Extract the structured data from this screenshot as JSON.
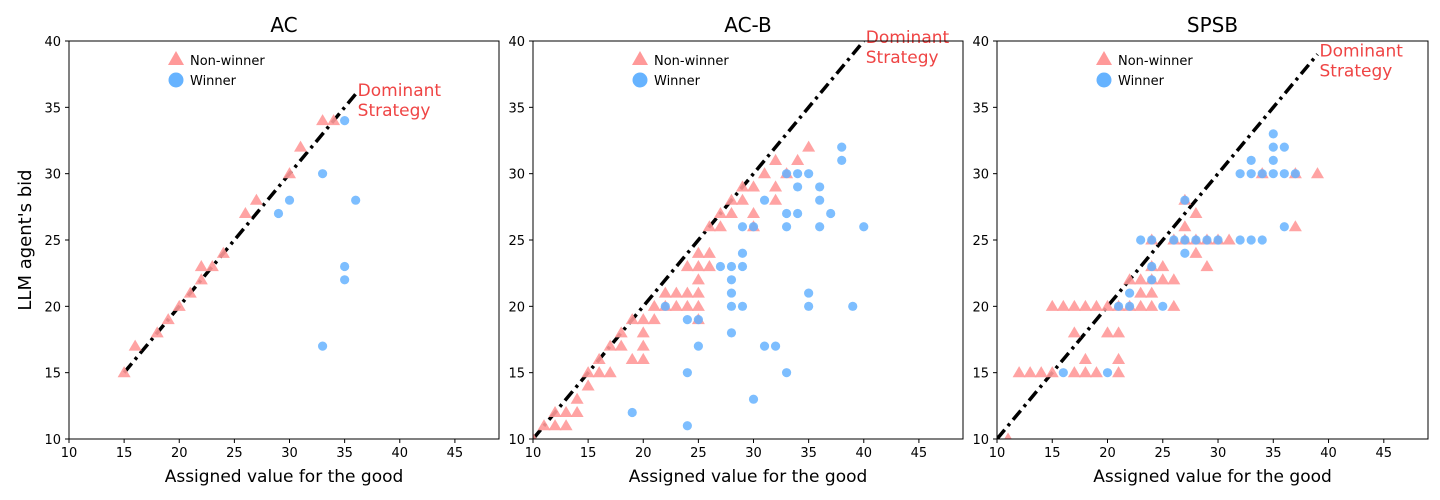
{
  "figure": {
    "ylabel": "LLM agent's bid"
  },
  "chart_data": [
    {
      "type": "scatter",
      "title": "AC",
      "xlabel": "Assigned value for the good",
      "ylabel": "LLM agent's bid",
      "xlim": [
        10,
        49
      ],
      "ylim": [
        10,
        40
      ],
      "xticks": [
        10,
        15,
        20,
        25,
        30,
        35,
        40,
        45
      ],
      "yticks": [
        10,
        15,
        20,
        25,
        30,
        35,
        40
      ],
      "legend_position": "upper-center",
      "reference_line": {
        "label": "Dominant Strategy",
        "x": [
          15,
          36
        ],
        "y": [
          15,
          36
        ],
        "color": "#000000"
      },
      "series": [
        {
          "name": "Non-winner",
          "marker": "triangle",
          "color": "#ff9999",
          "points": [
            [
              15,
              15
            ],
            [
              16,
              17
            ],
            [
              18,
              18
            ],
            [
              19,
              19
            ],
            [
              20,
              20
            ],
            [
              21,
              21
            ],
            [
              22,
              22
            ],
            [
              22,
              23
            ],
            [
              23,
              23
            ],
            [
              24,
              24
            ],
            [
              26,
              27
            ],
            [
              27,
              28
            ],
            [
              30,
              30
            ],
            [
              31,
              32
            ],
            [
              33,
              34
            ],
            [
              34,
              34
            ]
          ]
        },
        {
          "name": "Winner",
          "marker": "circle",
          "color": "#66b3ff",
          "points": [
            [
              35,
              34
            ],
            [
              33,
              30
            ],
            [
              30,
              28
            ],
            [
              29,
              27
            ],
            [
              36,
              28
            ],
            [
              35,
              23
            ],
            [
              35,
              22
            ],
            [
              33,
              17
            ]
          ]
        }
      ]
    },
    {
      "type": "scatter",
      "title": "AC-B",
      "xlabel": "Assigned value for the good",
      "xlim": [
        10,
        49
      ],
      "ylim": [
        10,
        40
      ],
      "xticks": [
        10,
        15,
        20,
        25,
        30,
        35,
        40,
        45
      ],
      "yticks": [
        10,
        15,
        20,
        25,
        30,
        35,
        40
      ],
      "legend_position": "upper-center",
      "reference_line": {
        "label": "Dominant Strategy",
        "x": [
          10,
          40
        ],
        "y": [
          10,
          40
        ],
        "color": "#000000"
      },
      "series": [
        {
          "name": "Non-winner",
          "marker": "triangle",
          "color": "#ff9999",
          "points": [
            [
              10,
              10
            ],
            [
              11,
              11
            ],
            [
              12,
              11
            ],
            [
              12,
              12
            ],
            [
              13,
              11
            ],
            [
              13,
              12
            ],
            [
              14,
              12
            ],
            [
              14,
              13
            ],
            [
              15,
              14
            ],
            [
              15,
              15
            ],
            [
              16,
              15
            ],
            [
              16,
              16
            ],
            [
              17,
              15
            ],
            [
              17,
              17
            ],
            [
              18,
              17
            ],
            [
              18,
              18
            ],
            [
              19,
              16
            ],
            [
              19,
              19
            ],
            [
              20,
              16
            ],
            [
              20,
              17
            ],
            [
              20,
              18
            ],
            [
              20,
              19
            ],
            [
              21,
              19
            ],
            [
              21,
              20
            ],
            [
              22,
              20
            ],
            [
              22,
              21
            ],
            [
              23,
              20
            ],
            [
              23,
              21
            ],
            [
              24,
              20
            ],
            [
              24,
              21
            ],
            [
              24,
              23
            ],
            [
              25,
              19
            ],
            [
              25,
              20
            ],
            [
              25,
              21
            ],
            [
              25,
              22
            ],
            [
              25,
              23
            ],
            [
              25,
              24
            ],
            [
              26,
              23
            ],
            [
              26,
              24
            ],
            [
              26,
              26
            ],
            [
              27,
              26
            ],
            [
              27,
              27
            ],
            [
              28,
              27
            ],
            [
              28,
              28
            ],
            [
              29,
              28
            ],
            [
              29,
              29
            ],
            [
              30,
              26
            ],
            [
              30,
              27
            ],
            [
              30,
              29
            ],
            [
              31,
              30
            ],
            [
              32,
              28
            ],
            [
              32,
              29
            ],
            [
              32,
              31
            ],
            [
              33,
              30
            ],
            [
              34,
              31
            ],
            [
              35,
              32
            ]
          ]
        },
        {
          "name": "Winner",
          "marker": "circle",
          "color": "#66b3ff",
          "points": [
            [
              19,
              12
            ],
            [
              22,
              20
            ],
            [
              24,
              19
            ],
            [
              24,
              15
            ],
            [
              24,
              11
            ],
            [
              25,
              19
            ],
            [
              25,
              17
            ],
            [
              27,
              23
            ],
            [
              28,
              23
            ],
            [
              28,
              22
            ],
            [
              28,
              21
            ],
            [
              28,
              20
            ],
            [
              28,
              18
            ],
            [
              29,
              26
            ],
            [
              29,
              24
            ],
            [
              29,
              23
            ],
            [
              29,
              20
            ],
            [
              30,
              26
            ],
            [
              30,
              13
            ],
            [
              31,
              28
            ],
            [
              31,
              17
            ],
            [
              32,
              17
            ],
            [
              33,
              30
            ],
            [
              33,
              27
            ],
            [
              33,
              26
            ],
            [
              33,
              15
            ],
            [
              34,
              30
            ],
            [
              34,
              29
            ],
            [
              34,
              27
            ],
            [
              35,
              30
            ],
            [
              35,
              21
            ],
            [
              35,
              20
            ],
            [
              36,
              29
            ],
            [
              36,
              28
            ],
            [
              36,
              26
            ],
            [
              37,
              27
            ],
            [
              38,
              32
            ],
            [
              38,
              31
            ],
            [
              39,
              20
            ],
            [
              40,
              26
            ]
          ]
        }
      ]
    },
    {
      "type": "scatter",
      "title": "SPSB",
      "xlabel": "Assigned value for the good",
      "xlim": [
        10,
        49
      ],
      "ylim": [
        10,
        40
      ],
      "xticks": [
        10,
        15,
        20,
        25,
        30,
        35,
        40,
        45
      ],
      "yticks": [
        10,
        15,
        20,
        25,
        30,
        35,
        40
      ],
      "legend_position": "upper-center",
      "reference_line": {
        "label": "Dominant Strategy",
        "x": [
          10,
          39
        ],
        "y": [
          10,
          39
        ],
        "color": "#000000"
      },
      "series": [
        {
          "name": "Non-winner",
          "marker": "triangle",
          "color": "#ff9999",
          "points": [
            [
              11,
              10
            ],
            [
              12,
              15
            ],
            [
              13,
              15
            ],
            [
              14,
              15
            ],
            [
              15,
              15
            ],
            [
              15,
              20
            ],
            [
              16,
              20
            ],
            [
              17,
              15
            ],
            [
              17,
              18
            ],
            [
              17,
              20
            ],
            [
              18,
              15
            ],
            [
              18,
              16
            ],
            [
              18,
              20
            ],
            [
              19,
              15
            ],
            [
              19,
              20
            ],
            [
              20,
              18
            ],
            [
              20,
              20
            ],
            [
              21,
              15
            ],
            [
              21,
              16
            ],
            [
              21,
              18
            ],
            [
              21,
              20
            ],
            [
              22,
              20
            ],
            [
              22,
              22
            ],
            [
              23,
              20
            ],
            [
              23,
              21
            ],
            [
              23,
              22
            ],
            [
              24,
              20
            ],
            [
              24,
              21
            ],
            [
              24,
              22
            ],
            [
              24,
              23
            ],
            [
              24,
              25
            ],
            [
              25,
              22
            ],
            [
              25,
              23
            ],
            [
              26,
              20
            ],
            [
              26,
              22
            ],
            [
              26,
              25
            ],
            [
              27,
              25
            ],
            [
              27,
              26
            ],
            [
              27,
              28
            ],
            [
              28,
              24
            ],
            [
              28,
              25
            ],
            [
              28,
              27
            ],
            [
              29,
              23
            ],
            [
              29,
              25
            ],
            [
              30,
              25
            ],
            [
              31,
              25
            ],
            [
              34,
              30
            ],
            [
              37,
              26
            ],
            [
              37,
              30
            ],
            [
              39,
              30
            ]
          ]
        },
        {
          "name": "Winner",
          "marker": "circle",
          "color": "#66b3ff",
          "points": [
            [
              16,
              15
            ],
            [
              20,
              15
            ],
            [
              21,
              20
            ],
            [
              22,
              20
            ],
            [
              22,
              21
            ],
            [
              23,
              25
            ],
            [
              24,
              22
            ],
            [
              24,
              23
            ],
            [
              24,
              25
            ],
            [
              25,
              20
            ],
            [
              26,
              25
            ],
            [
              27,
              24
            ],
            [
              27,
              25
            ],
            [
              27,
              28
            ],
            [
              28,
              25
            ],
            [
              29,
              25
            ],
            [
              30,
              25
            ],
            [
              32,
              25
            ],
            [
              32,
              30
            ],
            [
              33,
              25
            ],
            [
              33,
              30
            ],
            [
              33,
              31
            ],
            [
              34,
              25
            ],
            [
              34,
              30
            ],
            [
              35,
              30
            ],
            [
              35,
              31
            ],
            [
              35,
              32
            ],
            [
              35,
              33
            ],
            [
              36,
              26
            ],
            [
              36,
              30
            ],
            [
              36,
              32
            ],
            [
              37,
              30
            ]
          ]
        }
      ]
    }
  ]
}
